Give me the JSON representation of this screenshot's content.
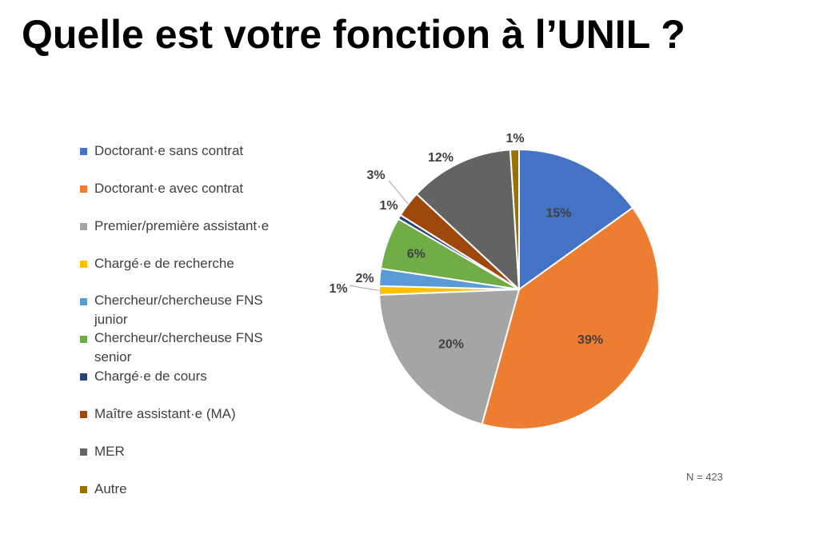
{
  "title": "Quelle est votre fonction à l’UNIL ?",
  "note": "N = 423",
  "chart_data": {
    "type": "pie",
    "start_angle_deg": 0,
    "direction": "clockwise",
    "slices": [
      {
        "label": "Doctorant·e sans contrat",
        "value": 15,
        "display": "15%",
        "color": "#4472C4"
      },
      {
        "label": "Doctorant·e avec contrat",
        "value": 39,
        "display": "39%",
        "color": "#ED7D31"
      },
      {
        "label": "Premier/première assistant·e",
        "value": 20,
        "display": "20%",
        "color": "#A5A5A5"
      },
      {
        "label": "Chargé·e de recherche",
        "value": 1,
        "display": "1%",
        "color": "#FFC000"
      },
      {
        "label": "Chercheur/chercheuse FNS junior",
        "value": 2,
        "display": "2%",
        "color": "#5B9BD5"
      },
      {
        "label": "Chercheur/chercheuse FNS senior",
        "value": 6,
        "display": "6%",
        "color": "#70AD47"
      },
      {
        "label": "Chargé·e de cours",
        "value": 0.5,
        "display": "1%",
        "color": "#264478"
      },
      {
        "label": "Maître assistant·e (MA)",
        "value": 3,
        "display": "3%",
        "color": "#9E480E"
      },
      {
        "label": "MER",
        "value": 12,
        "display": "12%",
        "color": "#636363"
      },
      {
        "label": "Autre",
        "value": 1,
        "display": "1%",
        "color": "#997300"
      }
    ],
    "legend_position": "left"
  }
}
